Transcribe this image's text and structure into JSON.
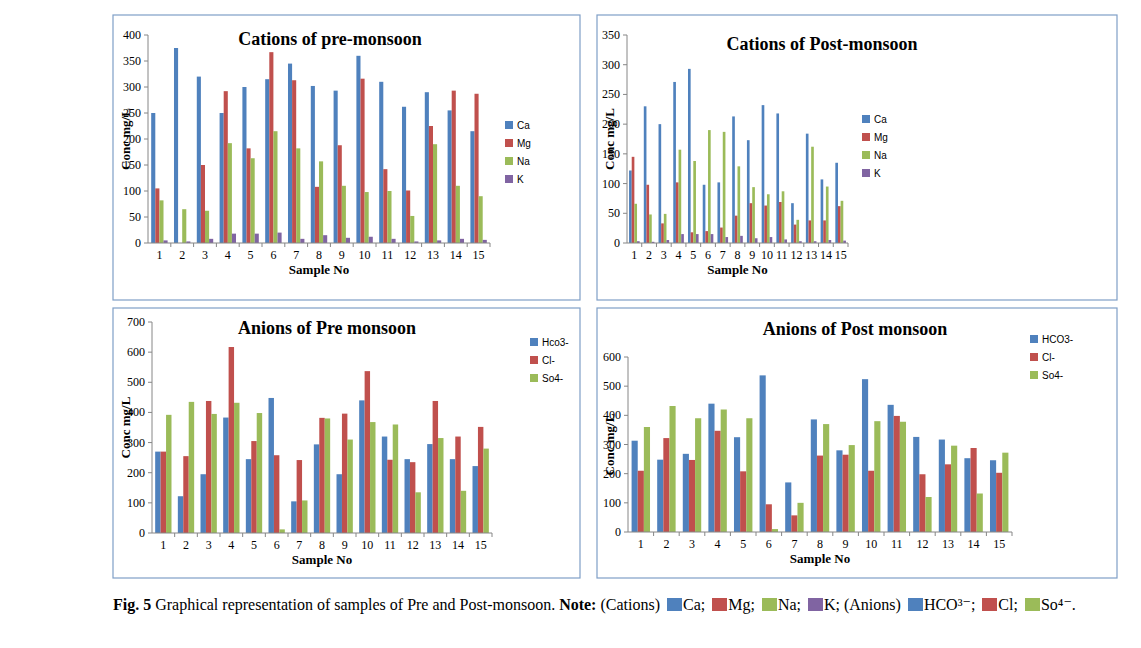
{
  "chart_data": [
    {
      "type": "bar",
      "title": "Cations of pre-monsoon",
      "x_label": "Sample No",
      "y_label": "Conc mg/L",
      "categories": [
        "1",
        "2",
        "3",
        "4",
        "5",
        "6",
        "7",
        "8",
        "9",
        "10",
        "11",
        "12",
        "13",
        "14",
        "15"
      ],
      "series": [
        {
          "name": "Ca",
          "color": "#4f81bd",
          "values": [
            250,
            375,
            320,
            250,
            300,
            315,
            345,
            302,
            293,
            360,
            310,
            262,
            290,
            255,
            215
          ]
        },
        {
          "name": "Mg",
          "color": "#c0504d",
          "values": [
            105,
            0,
            150,
            292,
            182,
            367,
            313,
            108,
            188,
            316,
            142,
            101,
            225,
            293,
            287
          ]
        },
        {
          "name": "Na",
          "color": "#9bbb59",
          "values": [
            82,
            65,
            62,
            192,
            163,
            215,
            182,
            157,
            110,
            98,
            100,
            52,
            190,
            110,
            90
          ]
        },
        {
          "name": "K",
          "color": "#8064a2",
          "values": [
            5,
            3,
            8,
            18,
            18,
            20,
            8,
            15,
            10,
            12,
            8,
            3,
            5,
            8,
            6
          ]
        }
      ],
      "ylim": [
        0,
        400
      ],
      "yticks": [
        0,
        50,
        100,
        150,
        200,
        250,
        300,
        350,
        400
      ],
      "grid": false,
      "legend": "right"
    },
    {
      "type": "bar",
      "title": "Cations of Post-monsoon",
      "x_label": "Sample No",
      "y_label": "Conc mg/L",
      "categories": [
        "1",
        "2",
        "3",
        "4",
        "5",
        "6",
        "7",
        "8",
        "9",
        "10",
        "11",
        "12",
        "13",
        "14",
        "15"
      ],
      "series": [
        {
          "name": "Ca",
          "color": "#4f81bd",
          "values": [
            122,
            230,
            200,
            271,
            293,
            98,
            102,
            213,
            173,
            232,
            218,
            67,
            184,
            107,
            135
          ]
        },
        {
          "name": "Mg",
          "color": "#c0504d",
          "values": [
            145,
            98,
            33,
            102,
            18,
            20,
            26,
            46,
            67,
            63,
            69,
            31,
            38,
            38,
            62
          ]
        },
        {
          "name": "Na",
          "color": "#9bbb59",
          "values": [
            66,
            48,
            49,
            157,
            138,
            190,
            187,
            129,
            94,
            82,
            87,
            39,
            162,
            95,
            71
          ]
        },
        {
          "name": "K",
          "color": "#8064a2",
          "values": [
            3,
            2,
            5,
            15,
            15,
            15,
            10,
            12,
            8,
            10,
            6,
            3,
            3,
            5,
            4
          ]
        }
      ],
      "ylim": [
        0,
        350
      ],
      "yticks": [
        0,
        50,
        100,
        150,
        200,
        250,
        300,
        350
      ],
      "grid": false,
      "legend": "right"
    },
    {
      "type": "bar",
      "title": "Anions of Pre monsoon",
      "x_label": "Sample No",
      "y_label": "Conc mg/L",
      "categories": [
        "1",
        "2",
        "3",
        "4",
        "5",
        "6",
        "7",
        "8",
        "9",
        "10",
        "11",
        "12",
        "13",
        "14",
        "15"
      ],
      "series": [
        {
          "name": "Hco3-",
          "color": "#4f81bd",
          "values": [
            270,
            122,
            195,
            383,
            245,
            448,
            105,
            294,
            195,
            440,
            320,
            245,
            295,
            245,
            222
          ]
        },
        {
          "name": "Cl-",
          "color": "#c0504d",
          "values": [
            270,
            255,
            438,
            617,
            305,
            258,
            242,
            382,
            396,
            537,
            243,
            235,
            438,
            320,
            352
          ]
        },
        {
          "name": "So4-",
          "color": "#9bbb59",
          "values": [
            392,
            435,
            395,
            432,
            398,
            12,
            108,
            380,
            310,
            368,
            360,
            135,
            315,
            140,
            280
          ]
        }
      ],
      "ylim": [
        0,
        700
      ],
      "yticks": [
        0,
        100,
        200,
        300,
        400,
        500,
        600,
        700
      ],
      "grid": false,
      "legend": "right"
    },
    {
      "type": "bar",
      "title": "Anions of Post monsoon",
      "x_label": "Sample No",
      "y_label": "Conc mg/L",
      "categories": [
        "1",
        "2",
        "3",
        "4",
        "5",
        "6",
        "7",
        "8",
        "9",
        "10",
        "11",
        "12",
        "13",
        "14",
        "15"
      ],
      "series": [
        {
          "name": "HCO3-",
          "color": "#4f81bd",
          "values": [
            313,
            248,
            268,
            440,
            325,
            537,
            170,
            386,
            280,
            524,
            436,
            326,
            317,
            253,
            246
          ]
        },
        {
          "name": "Cl-",
          "color": "#c0504d",
          "values": [
            210,
            322,
            247,
            347,
            208,
            95,
            57,
            262,
            265,
            210,
            398,
            198,
            232,
            288,
            203
          ]
        },
        {
          "name": "So4-",
          "color": "#9bbb59",
          "values": [
            360,
            432,
            390,
            420,
            390,
            10,
            100,
            370,
            298,
            380,
            378,
            120,
            296,
            132,
            272
          ]
        }
      ],
      "ylim": [
        0,
        600
      ],
      "yticks": [
        0,
        100,
        200,
        300,
        400,
        500,
        600
      ],
      "grid": false,
      "legend": "right"
    }
  ],
  "caption": {
    "label": "Fig. 5",
    "text": "Graphical representation of samples of Pre and Post-monsoon.",
    "note_label": "Note:",
    "cations_label": "(Cations)",
    "cations": [
      "Ca;",
      "Mg;",
      "Na;",
      "K;"
    ],
    "anions_label": "(Anions)",
    "anions": [
      "HCO³⁻;",
      "Cl;",
      "So⁴⁻."
    ]
  }
}
